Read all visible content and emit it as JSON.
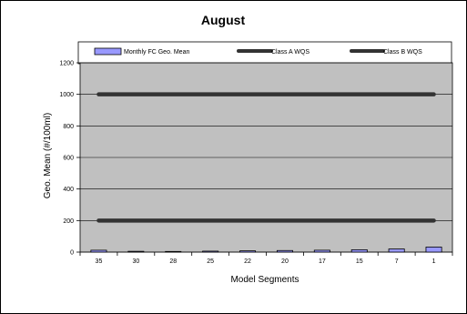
{
  "chart_data": {
    "type": "bar",
    "title": "August",
    "xlabel": "Model Segments",
    "ylabel": "Geo. Mean (#/100ml)",
    "categories": [
      "35",
      "30",
      "28",
      "25",
      "22",
      "20",
      "17",
      "15",
      "7",
      "1"
    ],
    "ylim": [
      0,
      1200
    ],
    "yticks": [
      0,
      200,
      400,
      600,
      800,
      1000,
      1200
    ],
    "grid": true,
    "legend_position": "top",
    "series": [
      {
        "name": "Monthly FC Geo. Mean",
        "kind": "bar",
        "values": [
          12,
          5,
          4,
          6,
          8,
          10,
          12,
          15,
          20,
          32
        ]
      },
      {
        "name": "Class A WQS",
        "kind": "line",
        "values": [
          1000,
          1000,
          1000,
          1000,
          1000,
          1000,
          1000,
          1000,
          1000,
          1000
        ]
      },
      {
        "name": "Class B WQS",
        "kind": "line",
        "values": [
          200,
          200,
          200,
          200,
          200,
          200,
          200,
          200,
          200,
          200
        ]
      }
    ],
    "colors": {
      "plot_background": "#c0c0c0",
      "bar_fill": "#9999ff",
      "standard_line": "#333333",
      "gridline": "#000000"
    }
  }
}
